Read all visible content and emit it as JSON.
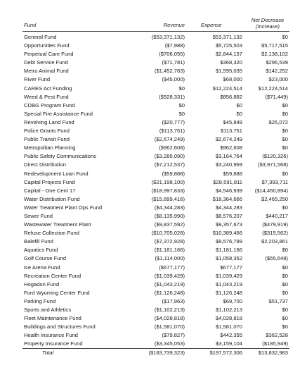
{
  "header": {
    "fund": "Fund",
    "revenue": "Revenue",
    "expense": "Expense",
    "net_line1": "Net Decrease",
    "net_line2": "(Increase)"
  },
  "rows": [
    {
      "fund": "General Fund",
      "revenue": "($53,371,132)",
      "expense": "$53,371,132",
      "net": "$0"
    },
    {
      "fund": "Opportunities Fund",
      "revenue": "($7,988)",
      "expense": "$5,725,503",
      "net": "$5,717,515"
    },
    {
      "fund": "Perpetual Care Fund",
      "revenue": "($706,055)",
      "expense": "$2,844,157",
      "net": "$2,138,102"
    },
    {
      "fund": "Debt Service Fund",
      "revenue": "($71,781)",
      "expense": "$368,320",
      "net": "$296,539"
    },
    {
      "fund": "Metro Animal Fund",
      "revenue": "($1,452,783)",
      "expense": "$1,595,035",
      "net": "$142,252"
    },
    {
      "fund": "River Fund",
      "revenue": "($45,000)",
      "expense": "$68,000",
      "net": "$23,000"
    },
    {
      "fund": "CARES Act Funding",
      "revenue": "$0",
      "expense": "$12,224,514",
      "net": "$12,224,514"
    },
    {
      "fund": "Weed & Pest Fund",
      "revenue": "($928,331)",
      "expense": "$856,882",
      "net": "($71,449)"
    },
    {
      "fund": "CDBG Program Fund",
      "revenue": "$0",
      "expense": "$0",
      "net": "$0"
    },
    {
      "fund": "Special Fire Assistance Fund",
      "revenue": "$0",
      "expense": "$0",
      "net": "$0"
    },
    {
      "fund": "Revolving Land Fund",
      "revenue": "($20,777)",
      "expense": "$45,849",
      "net": "$25,072"
    },
    {
      "fund": "Police Grants Fund",
      "revenue": "($113,751)",
      "expense": "$113,751",
      "net": "$0"
    },
    {
      "fund": "Public Transit Fund",
      "revenue": "($2,674,249)",
      "expense": "$2,674,249",
      "net": "$0"
    },
    {
      "fund": "Metropolitan Planning",
      "revenue": "($962,608)",
      "expense": "$962,608",
      "net": "$0"
    },
    {
      "fund": "Public Safety Communications",
      "revenue": "($3,285,090)",
      "expense": "$3,164,764",
      "net": "($120,326)"
    },
    {
      "fund": "Direct Distribution",
      "revenue": "($7,212,537)",
      "expense": "$3,240,969",
      "net": "($3,971,568)"
    },
    {
      "fund": "Redevelopment Loan Fund",
      "revenue": "($59,888)",
      "expense": "$59,888",
      "net": "$0"
    },
    {
      "fund": "Capital Projects Fund",
      "revenue": "($21,198,100)",
      "expense": "$28,591,811",
      "net": "$7,393,711"
    },
    {
      "fund": "Capital - One Cent 17",
      "revenue": "($18,997,833)",
      "expense": "$4,546,939",
      "net": "($14,450,894)"
    },
    {
      "fund": "Water Distribution Fund",
      "revenue": "($15,899,416)",
      "expense": "$18,364,666",
      "net": "$2,465,250"
    },
    {
      "fund": "Water Treatment Plant Ops Fund",
      "revenue": "($4,344,283)",
      "expense": "$4,344,283",
      "net": "$0"
    },
    {
      "fund": "Sewer Fund",
      "revenue": "($8,135,990)",
      "expense": "$8,576,207",
      "net": "$440,217"
    },
    {
      "fund": "Wastewater Treatment Plant",
      "revenue": "($9,837,592)",
      "expense": "$9,357,673",
      "net": "($479,919)"
    },
    {
      "fund": "Refuse Collection Fund",
      "revenue": "($10,705,028)",
      "expense": "$10,389,466",
      "net": "($315,562)"
    },
    {
      "fund": "Balefill Fund",
      "revenue": "($7,372,928)",
      "expense": "$9,576,789",
      "net": "$2,203,861"
    },
    {
      "fund": "Aquatics Fund",
      "revenue": "($1,181,166)",
      "expense": "$1,181,166",
      "net": "$0"
    },
    {
      "fund": "Golf Course Fund",
      "revenue": "($1,114,000)",
      "expense": "$1,058,352",
      "net": "($55,648)"
    },
    {
      "fund": "Ice Arena Fund",
      "revenue": "($677,177)",
      "expense": "$677,177",
      "net": "$0"
    },
    {
      "fund": "Recreation Center Fund",
      "revenue": "($1,039,429)",
      "expense": "$1,039,429",
      "net": "$0"
    },
    {
      "fund": "Hogadon Fund",
      "revenue": "($1,043,219)",
      "expense": "$1,043,219",
      "net": "$0"
    },
    {
      "fund": "Ford Wyoming Center Fund",
      "revenue": "($1,126,248)",
      "expense": "$1,126,248",
      "net": "$0"
    },
    {
      "fund": "Parking Fund",
      "revenue": "($17,963)",
      "expense": "$69,700",
      "net": "$51,737"
    },
    {
      "fund": "Sports and Athletics",
      "revenue": "($1,102,213)",
      "expense": "$1,102,213",
      "net": "$0"
    },
    {
      "fund": "Fleet Maintenance Fund",
      "revenue": "($4,028,818)",
      "expense": "$4,028,818",
      "net": "$0"
    },
    {
      "fund": "Buildings and Structures Fund",
      "revenue": "($1,581,070)",
      "expense": "$1,581,070",
      "net": "$0"
    },
    {
      "fund": "Health Insurance Fund",
      "revenue": "($79,827)",
      "expense": "$442,355",
      "net": "$362,528"
    },
    {
      "fund": "Property Insurance Fund",
      "revenue": "($3,345,053)",
      "expense": "$3,159,104",
      "net": "($185,949)"
    }
  ],
  "total": {
    "label": "Total",
    "revenue": "($183,739,323)",
    "expense": "$197,572,306",
    "net": "$13,832,983"
  }
}
